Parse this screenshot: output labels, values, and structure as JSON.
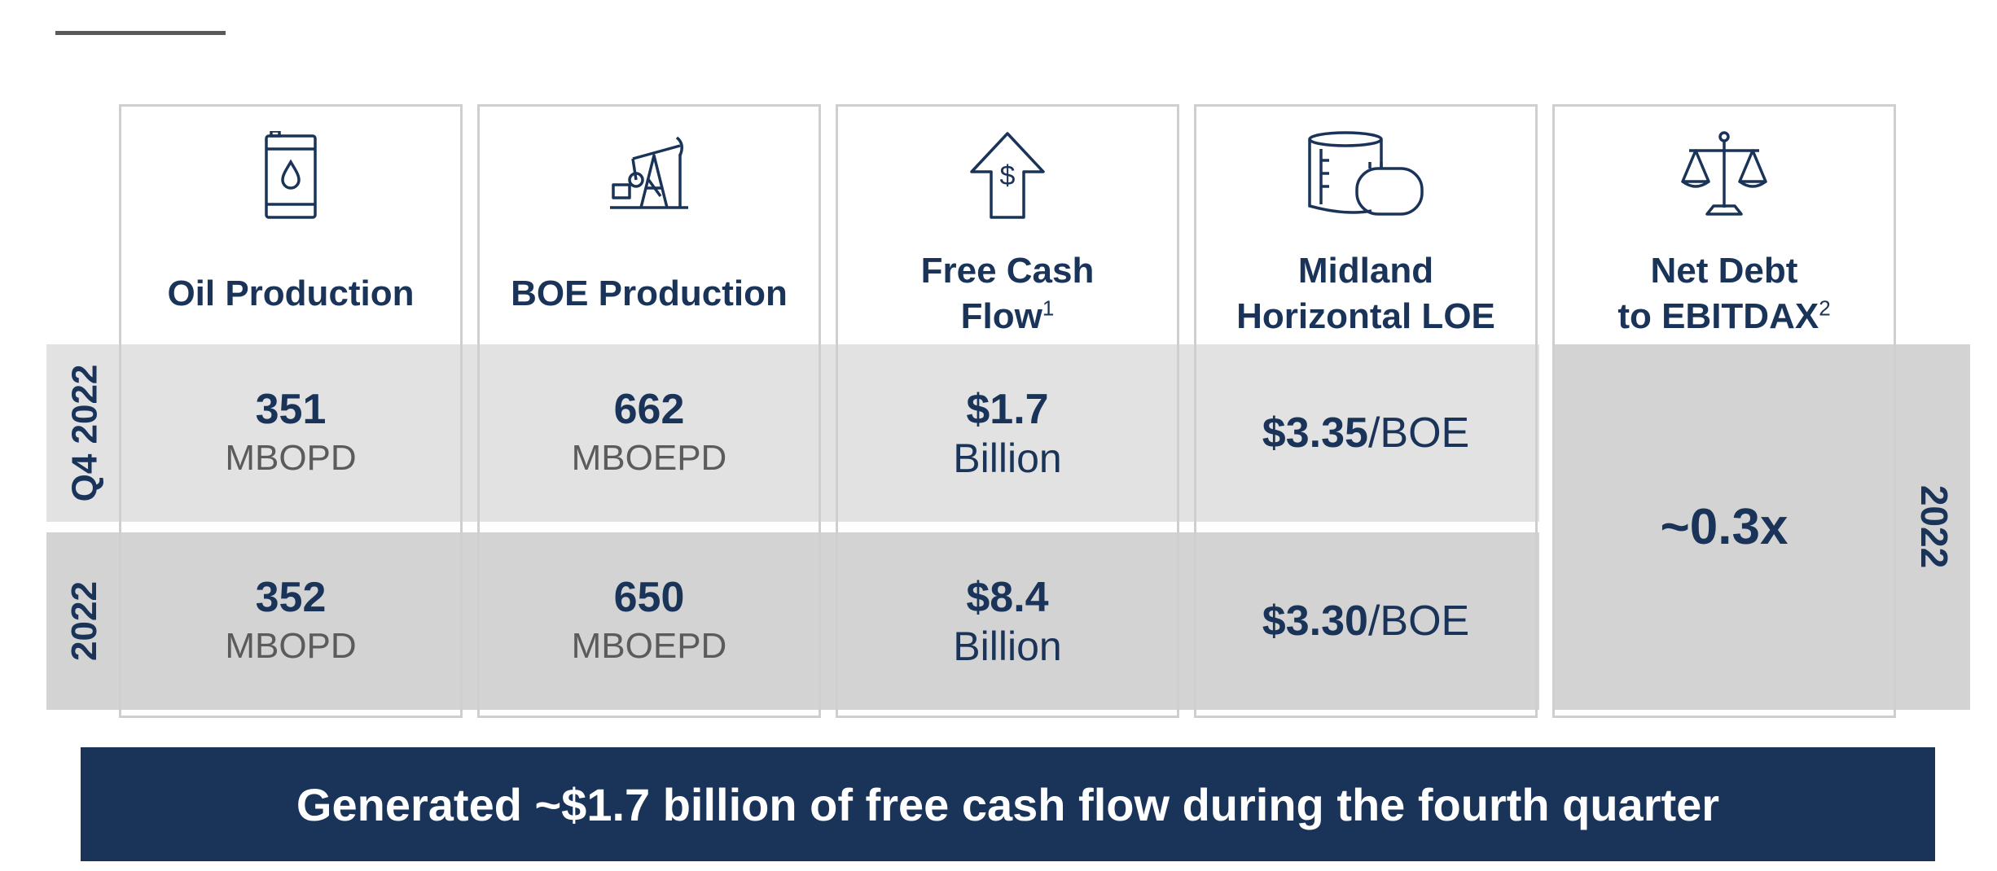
{
  "row_labels": {
    "q4": "Q4 2022",
    "year": "2022",
    "net_debt_period": "2022"
  },
  "columns": [
    {
      "title": "Oil Production",
      "sup": "",
      "icon": "oil-barrel-icon",
      "q4": {
        "value": "351",
        "unit": "MBOPD"
      },
      "year": {
        "value": "352",
        "unit": "MBOPD"
      }
    },
    {
      "title": "BOE Production",
      "sup": "",
      "icon": "pump-jack-icon",
      "q4": {
        "value": "662",
        "unit": "MBOEPD"
      },
      "year": {
        "value": "650",
        "unit": "MBOEPD"
      }
    },
    {
      "title": "Free Cash Flow",
      "sup": "1",
      "icon": "dollar-up-arrow-icon",
      "q4": {
        "value": "$1.7",
        "unit": "Billion"
      },
      "year": {
        "value": "$8.4",
        "unit": "Billion"
      }
    },
    {
      "title_line1": "Midland",
      "title_line2": "Horizontal LOE",
      "icon": "storage-tanks-icon",
      "q4": {
        "value": "$3.35",
        "unit": "/BOE"
      },
      "year": {
        "value": "$3.30",
        "unit": "/BOE"
      }
    },
    {
      "title_line1": "Net Debt",
      "title_line2": "to EBITDAX",
      "sup": "2",
      "icon": "balance-scale-icon",
      "value": "~0.3x"
    }
  ],
  "banner": "Generated ~$1.7 billion of free cash flow during the fourth quarter",
  "colors": {
    "navy": "#1a3358",
    "band_light": "#e2e2e2",
    "band_dark": "#d3d3d3",
    "border": "#cfcfcf",
    "unit_gray": "#5b5b5b"
  }
}
